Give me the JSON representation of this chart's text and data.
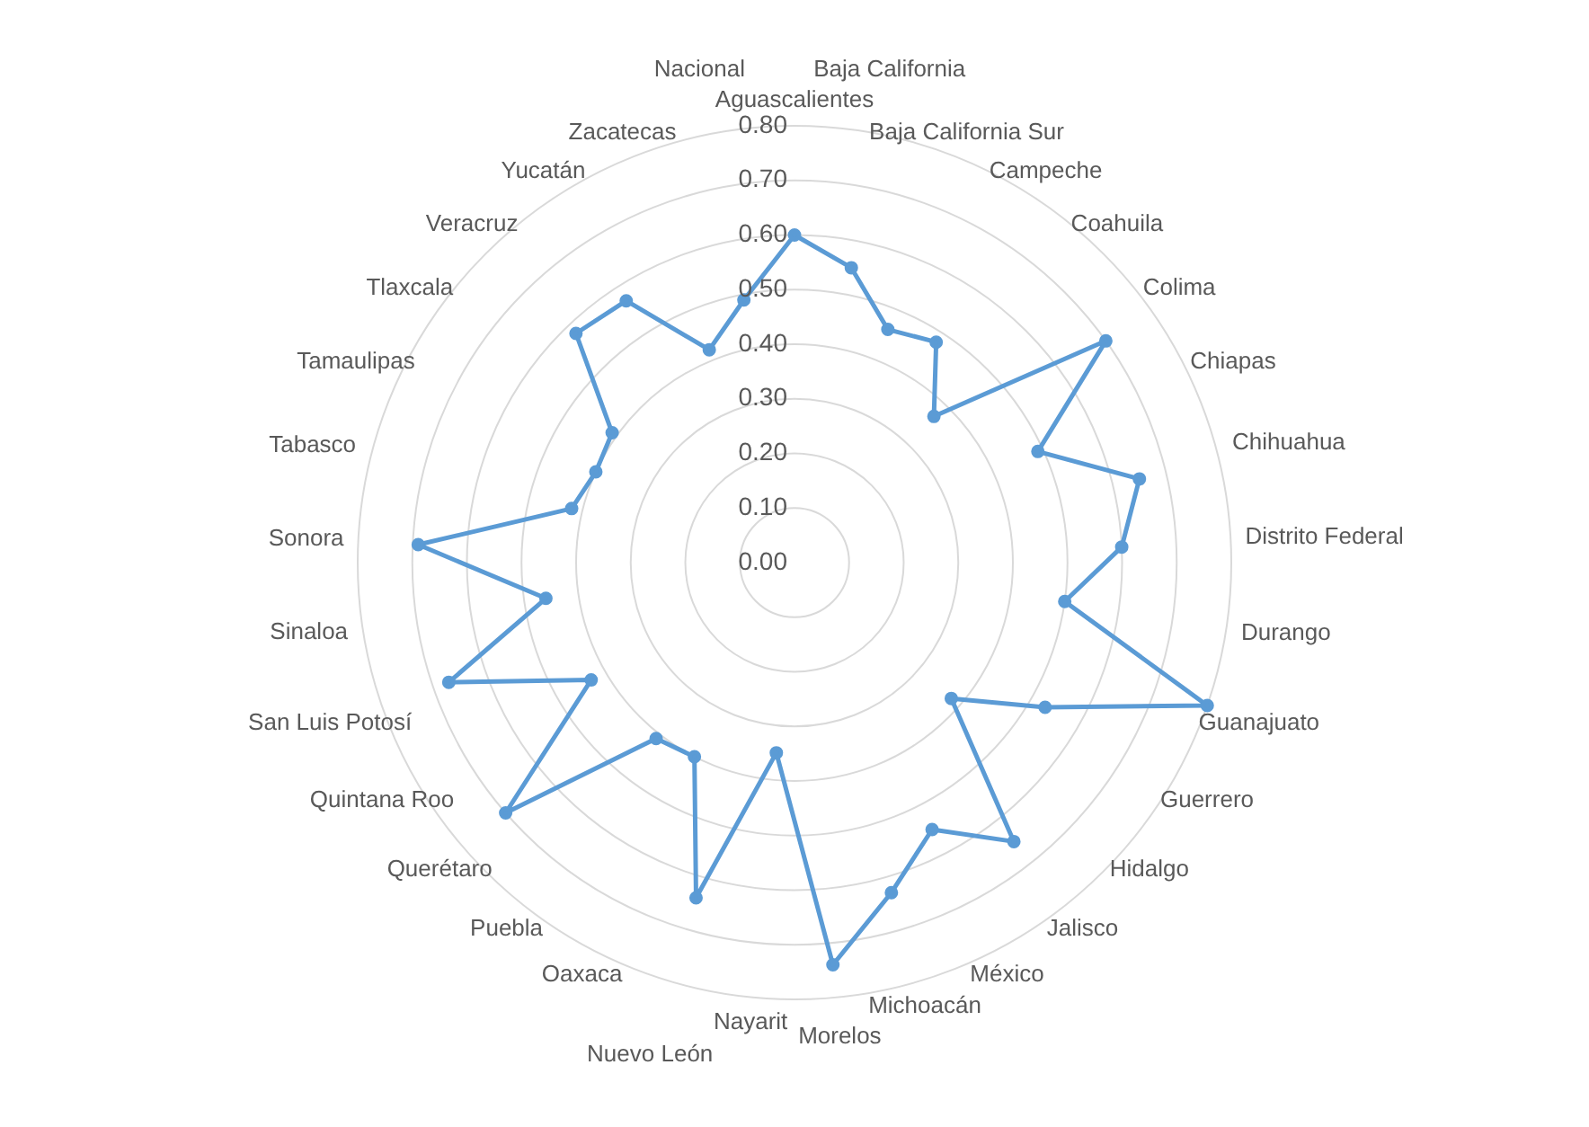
{
  "chart_data": {
    "type": "radar",
    "categories": [
      "Aguascalientes",
      "Baja California",
      "Baja California Sur",
      "Campeche",
      "Coahuila",
      "Colima",
      "Chiapas",
      "Chihuahua",
      "Distrito Federal",
      "Durango",
      "Guanajuato",
      "Guerrero",
      "Hidalgo",
      "Jalisco",
      "México",
      "Michoacán",
      "Morelos",
      "Nayarit",
      "Nuevo León",
      "Oaxaca",
      "Puebla",
      "Querétaro",
      "Quintana Roo",
      "San Luis Potosí",
      "Sinaloa",
      "Sonora",
      "Tabasco",
      "Tamaulipas",
      "Tlaxcala",
      "Veracruz",
      "Yucatán",
      "Zacatecas",
      "Nacional"
    ],
    "series": [
      {
        "color": "#5b9bd5",
        "values": [
          0.6,
          0.55,
          0.46,
          0.48,
          0.37,
          0.7,
          0.49,
          0.65,
          0.6,
          0.5,
          0.8,
          0.53,
          0.38,
          0.65,
          0.55,
          0.63,
          0.74,
          0.35,
          0.64,
          0.4,
          0.41,
          0.7,
          0.43,
          0.67,
          0.46,
          0.69,
          0.42,
          0.4,
          0.41,
          0.58,
          0.57,
          0.42,
          0.49
        ]
      }
    ],
    "ylim": [
      0,
      0.8
    ],
    "yticks": [
      {
        "value": 0,
        "label": "0.00"
      },
      {
        "value": 0.1,
        "label": "0.10"
      },
      {
        "value": 0.2,
        "label": "0.20"
      },
      {
        "value": 0.3,
        "label": "0.30"
      },
      {
        "value": 0.4,
        "label": "0.40"
      },
      {
        "value": 0.5,
        "label": "0.50"
      },
      {
        "value": 0.6,
        "label": "0.60"
      },
      {
        "value": 0.7,
        "label": "0.70"
      },
      {
        "value": 0.8,
        "label": "0.80"
      }
    ],
    "grid": true,
    "marker": "circle"
  }
}
